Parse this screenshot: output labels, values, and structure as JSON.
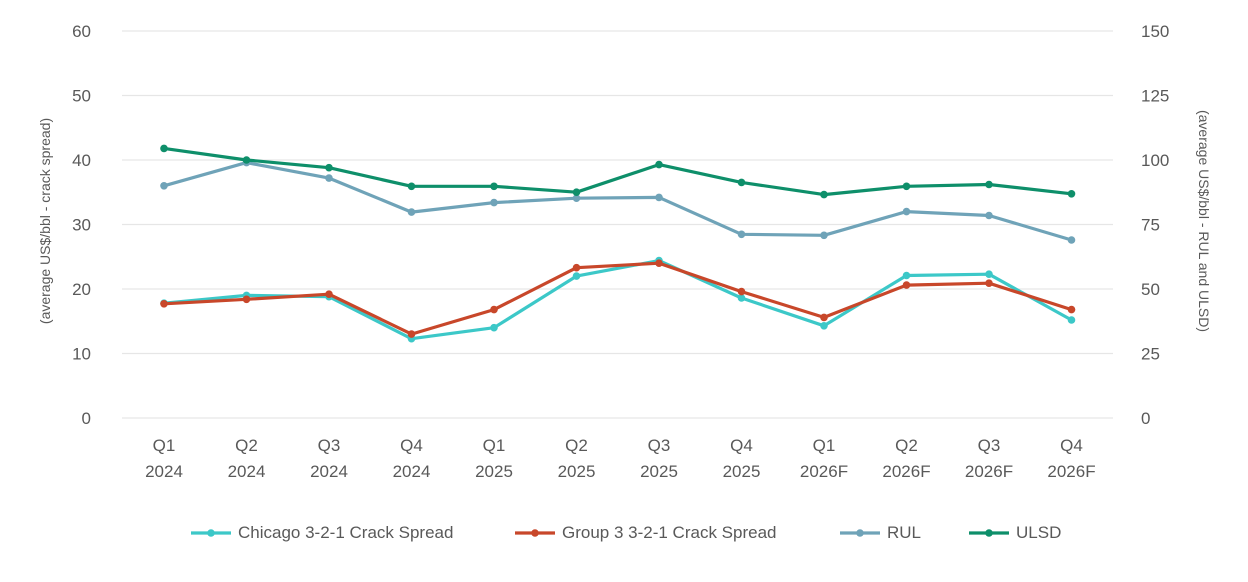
{
  "chart_data": {
    "type": "line",
    "title": "",
    "categories": [
      [
        "Q1",
        "2024"
      ],
      [
        "Q2",
        "2024"
      ],
      [
        "Q3",
        "2024"
      ],
      [
        "Q4",
        "2024"
      ],
      [
        "Q1",
        "2025"
      ],
      [
        "Q2",
        "2025"
      ],
      [
        "Q3",
        "2025"
      ],
      [
        "Q4",
        "2025"
      ],
      [
        "Q1",
        "2026F"
      ],
      [
        "Q2",
        "2026F"
      ],
      [
        "Q3",
        "2026F"
      ],
      [
        "Q4",
        "2026F"
      ]
    ],
    "ylabel_left": "(average US$/bbl - crack spread)",
    "ylabel_right": "(average US$/bbl - RUL and ULSD)",
    "ylim_left": [
      0,
      60
    ],
    "yticks_left": [
      0,
      10,
      20,
      30,
      40,
      50,
      60
    ],
    "ylim_right": [
      0,
      150
    ],
    "yticks_right": [
      0,
      25,
      50,
      75,
      100,
      125,
      150
    ],
    "grid": true,
    "legend_position": "bottom",
    "series": [
      {
        "name": "Chicago 3-2-1 Crack Spread",
        "axis": "left",
        "color": "#3cc8c8",
        "values": [
          17.8,
          19.0,
          18.8,
          12.3,
          14.0,
          22.0,
          24.4,
          18.6,
          14.3,
          22.1,
          22.3,
          15.2
        ]
      },
      {
        "name": "Group 3 3-2-1 Crack Spread",
        "axis": "left",
        "color": "#c8472a",
        "values": [
          17.7,
          18.4,
          19.2,
          13.0,
          16.8,
          23.3,
          24.0,
          19.6,
          15.6,
          20.6,
          20.9,
          16.8
        ]
      },
      {
        "name": "RUL",
        "axis": "right",
        "color": "#6fa3b8",
        "values": [
          90.0,
          99.0,
          93.0,
          79.8,
          83.5,
          85.2,
          85.5,
          71.2,
          70.8,
          80.0,
          78.5,
          69.0
        ]
      },
      {
        "name": "ULSD",
        "axis": "right",
        "color": "#0e8f6a",
        "values": [
          104.5,
          100.0,
          97.0,
          89.8,
          89.8,
          87.5,
          98.2,
          91.3,
          86.6,
          89.8,
          90.5,
          86.9
        ]
      }
    ]
  }
}
